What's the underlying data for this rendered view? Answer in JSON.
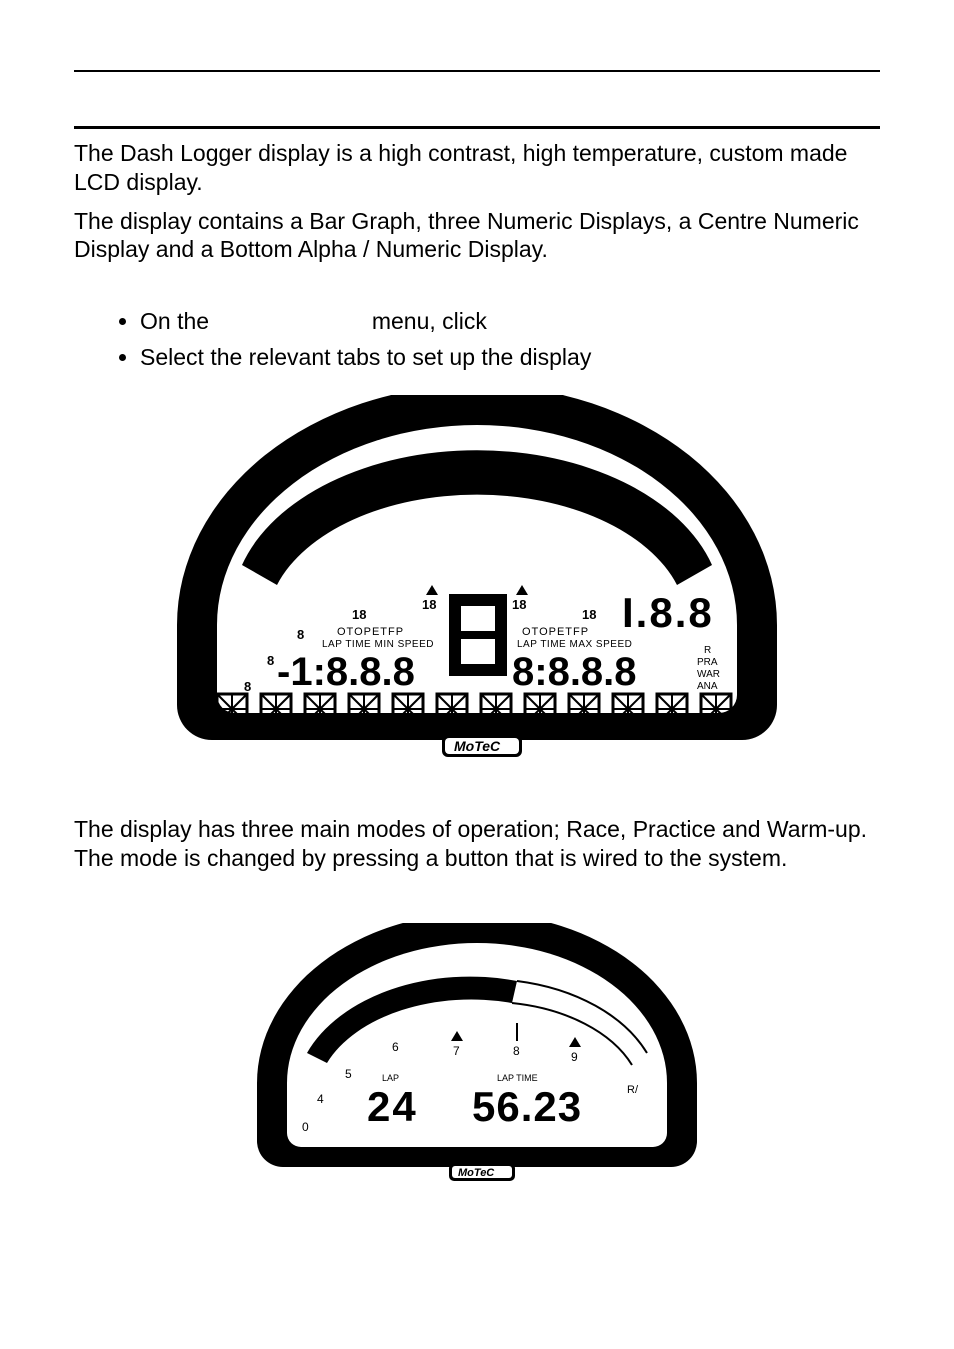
{
  "para1": "The Dash Logger display is a high contrast, high temperature, custom made LCD display.",
  "para2": "The display contains a Bar Graph, three Numeric Displays, a Centre Numeric Display and a Bottom Alpha / Numeric Display.",
  "bullets": {
    "b1_pre": "On the",
    "b1_post": "menu, click",
    "b2": "Select the relevant tabs to set up the display"
  },
  "para3": "The display has three main modes of operation; Race, Practice and Warm-up. The mode is changed by pressing a button that is wired to the system.",
  "dash1": {
    "brand": "MoTeC",
    "left_legend": "OTOPETFP",
    "left_sub": "LAP TIME MIN SPEED",
    "right_legend": "OTOPETFP",
    "right_sub": "LAP TIME MAX SPEED",
    "side_labels": [
      "R",
      "PRA",
      "WAR",
      "ANA"
    ],
    "top_digits": "I.8.8",
    "left_num": "-1:8.8.8",
    "right_num": "8:8.8.8",
    "center_digit": "8",
    "bottom_glyph_count": 12,
    "tick_labels": [
      "18",
      "18",
      "18",
      "18",
      "8",
      "8",
      "8"
    ],
    "colors": {
      "stroke": "#000000",
      "fill_bg": "#ffffff"
    }
  },
  "dash2": {
    "brand": "MoTeC",
    "lap_label": "LAP",
    "laptime_label": "LAP TIME",
    "lap_value": "24",
    "laptime_value": "56.23",
    "side_label": "R/",
    "tick_labels": [
      "0",
      "4",
      "5",
      "6",
      "7",
      "8",
      "9"
    ],
    "bar_fill_ticks": 5,
    "colors": {
      "stroke": "#000000",
      "fill_bg": "#ffffff"
    }
  }
}
